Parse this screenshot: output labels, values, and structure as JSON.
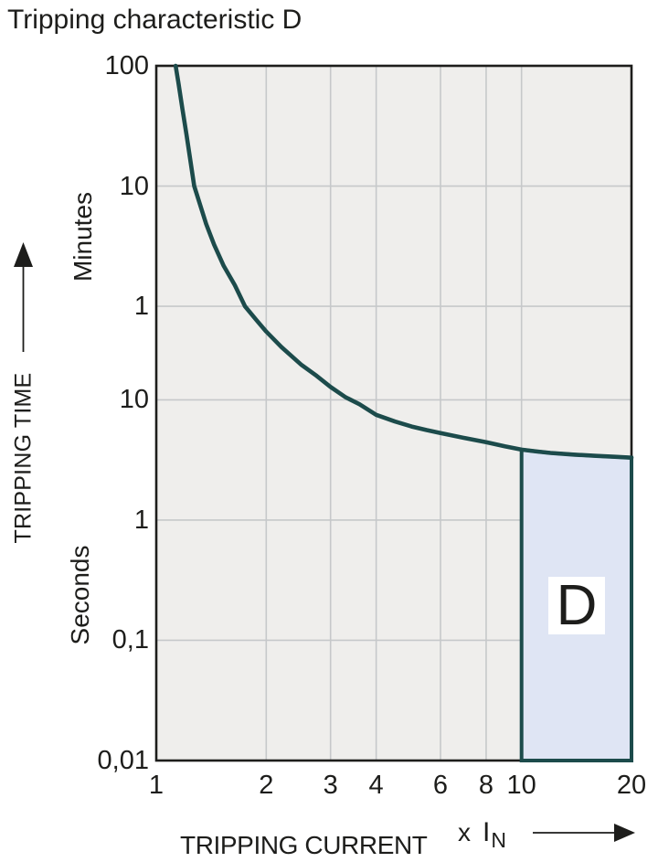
{
  "title": "Tripping characteristic D",
  "colors": {
    "curve": "#1c4b4b",
    "plot_background": "#efeeec",
    "gridline": "#c6c8ca",
    "frame": "#1d1d1b",
    "region_fill": "#dfe5f4",
    "region_border": "#1c4b4b",
    "region_label_background": "#ffffff",
    "text": "#1d1d1b"
  },
  "chart_data": {
    "type": "line",
    "title": "Tripping characteristic D",
    "x_axis": {
      "label": "TRIPPING CURRENT",
      "unit_prefix": "x",
      "unit_symbol": "I",
      "unit_subscript": "N",
      "scale": "log",
      "min": 1,
      "max": 20,
      "tick_values": [
        1,
        2,
        3,
        4,
        6,
        8,
        10,
        20
      ],
      "tick_labels": [
        "1",
        "2",
        "3",
        "4",
        "6",
        "8",
        "10",
        "20"
      ],
      "gridline_values": [
        2,
        3,
        4,
        6,
        8,
        10
      ]
    },
    "y_axis": {
      "label": "TRIPPING TIME",
      "scale": "log",
      "min_seconds": 0.01,
      "max_seconds": 6000,
      "unit_label_minutes": "Minutes",
      "unit_label_seconds": "Seconds",
      "ticks": [
        {
          "label": "100",
          "seconds": 6000,
          "unit": "Minutes"
        },
        {
          "label": "10",
          "seconds": 600,
          "unit": "Minutes"
        },
        {
          "label": "1",
          "seconds": 60,
          "unit": "Minutes"
        },
        {
          "label": "10",
          "seconds": 10,
          "unit": "Seconds"
        },
        {
          "label": "1",
          "seconds": 1,
          "unit": "Seconds"
        },
        {
          "label": "0,1",
          "seconds": 0.1,
          "unit": "Seconds"
        },
        {
          "label": "0,01",
          "seconds": 0.01,
          "unit": "Seconds"
        }
      ]
    },
    "series": [
      {
        "name": "D tripping characteristic curve",
        "color": "#1c4b4b",
        "points_current_seconds": [
          [
            1.13,
            6000
          ],
          [
            1.15,
            4300
          ],
          [
            1.18,
            2600
          ],
          [
            1.21,
            1600
          ],
          [
            1.24,
            980
          ],
          [
            1.27,
            600
          ],
          [
            1.315,
            430
          ],
          [
            1.37,
            290
          ],
          [
            1.44,
            195
          ],
          [
            1.53,
            130
          ],
          [
            1.64,
            90
          ],
          [
            1.75,
            60
          ],
          [
            1.88,
            46
          ],
          [
            2.0,
            37
          ],
          [
            2.2,
            27.5
          ],
          [
            2.5,
            19.5
          ],
          [
            2.75,
            15.8
          ],
          [
            3.0,
            12.8
          ],
          [
            3.3,
            10.5
          ],
          [
            3.6,
            9.2
          ],
          [
            4.0,
            7.5
          ],
          [
            4.5,
            6.6
          ],
          [
            5.0,
            6.0
          ],
          [
            5.5,
            5.6
          ],
          [
            6.0,
            5.3
          ],
          [
            7.0,
            4.8
          ],
          [
            8.0,
            4.45
          ],
          [
            9.0,
            4.1
          ],
          [
            10.0,
            3.85
          ],
          [
            11.0,
            3.72
          ],
          [
            12.0,
            3.62
          ],
          [
            14.0,
            3.5
          ],
          [
            16.0,
            3.42
          ],
          [
            18.0,
            3.36
          ],
          [
            20.0,
            3.3
          ]
        ]
      }
    ],
    "region": {
      "label": "D",
      "x_from": 10,
      "x_to": 20,
      "bottom_seconds": 0.01
    }
  }
}
